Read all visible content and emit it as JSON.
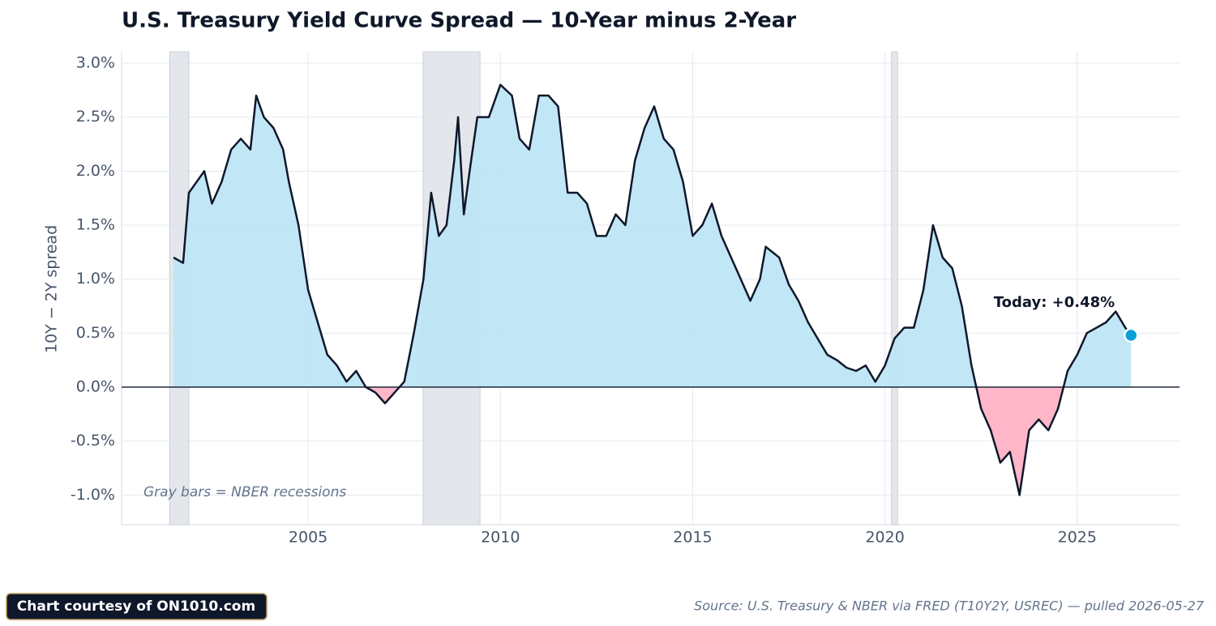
{
  "chart_data": {
    "type": "line",
    "title": "U.S. Treasury Yield Curve Spread — 10-Year minus 2-Year",
    "y_label": "10Y − 2Y spread",
    "xlim": [
      2000.15,
      2027.66
    ],
    "ylim": [
      -1.275,
      3.105
    ],
    "xticks": [
      2005,
      2010,
      2015,
      2020,
      2025
    ],
    "yticks": [
      {
        "value": -1,
        "label": "-1.0%"
      },
      {
        "value": -0.5,
        "label": "-0.5%"
      },
      {
        "value": 0,
        "label": "0.0%"
      },
      {
        "value": 0.5,
        "label": "0.5%"
      },
      {
        "value": 1,
        "label": "1.0%"
      },
      {
        "value": 1.5,
        "label": "1.5%"
      },
      {
        "value": 2,
        "label": "2.0%"
      },
      {
        "value": 2.5,
        "label": "2.5%"
      },
      {
        "value": 3,
        "label": "3.0%"
      }
    ],
    "grid": true,
    "positive_fill": "#bee5f4",
    "negative_fill": "#ffb6c8",
    "line_color": "#0f172a",
    "marker_color": "#0aa0d8",
    "recession_color": "#e2e6ec",
    "recessions": [
      [
        2001.4,
        2001.9
      ],
      [
        2007.99,
        2009.47
      ],
      [
        2020.17,
        2020.33
      ]
    ],
    "series": [
      {
        "name": "10Y − 2Y spread",
        "color": "#0f172a",
        "x": [
          2001.5,
          2001.75,
          2001.9,
          2002.1,
          2002.3,
          2002.5,
          2002.75,
          2003.0,
          2003.25,
          2003.5,
          2003.65,
          2003.85,
          2004.1,
          2004.35,
          2004.5,
          2004.75,
          2005.0,
          2005.25,
          2005.5,
          2005.75,
          2006.0,
          2006.25,
          2006.5,
          2006.75,
          2007.0,
          2007.25,
          2007.5,
          2007.75,
          2008.0,
          2008.2,
          2008.4,
          2008.6,
          2008.8,
          2008.9,
          2009.05,
          2009.2,
          2009.4,
          2009.7,
          2010.0,
          2010.3,
          2010.5,
          2010.75,
          2011.0,
          2011.25,
          2011.5,
          2011.75,
          2012.0,
          2012.25,
          2012.5,
          2012.75,
          2013.0,
          2013.25,
          2013.5,
          2013.75,
          2014.0,
          2014.25,
          2014.5,
          2014.75,
          2015.0,
          2015.25,
          2015.5,
          2015.75,
          2016.0,
          2016.25,
          2016.5,
          2016.75,
          2016.9,
          2017.25,
          2017.5,
          2017.75,
          2018.0,
          2018.25,
          2018.5,
          2018.75,
          2019.0,
          2019.25,
          2019.5,
          2019.75,
          2020.0,
          2020.25,
          2020.5,
          2020.75,
          2021.0,
          2021.25,
          2021.5,
          2021.75,
          2022.0,
          2022.25,
          2022.5,
          2022.75,
          2023.0,
          2023.25,
          2023.5,
          2023.75,
          2024.0,
          2024.25,
          2024.5,
          2024.75,
          2025.0,
          2025.25,
          2025.5,
          2025.75,
          2026.0,
          2026.25,
          2026.4
        ],
        "values": [
          1.2,
          1.15,
          1.8,
          1.9,
          2.0,
          1.7,
          1.9,
          2.2,
          2.3,
          2.2,
          2.7,
          2.5,
          2.4,
          2.2,
          1.9,
          1.5,
          0.9,
          0.6,
          0.3,
          0.2,
          0.05,
          0.15,
          0.0,
          -0.05,
          -0.15,
          -0.05,
          0.05,
          0.5,
          1.0,
          1.8,
          1.4,
          1.5,
          2.1,
          2.5,
          1.6,
          2.0,
          2.5,
          2.5,
          2.8,
          2.7,
          2.3,
          2.2,
          2.7,
          2.7,
          2.6,
          1.8,
          1.8,
          1.7,
          1.4,
          1.4,
          1.6,
          1.5,
          2.1,
          2.4,
          2.6,
          2.3,
          2.2,
          1.9,
          1.4,
          1.5,
          1.7,
          1.4,
          1.2,
          1.0,
          0.8,
          1.0,
          1.3,
          1.2,
          0.95,
          0.8,
          0.6,
          0.45,
          0.3,
          0.25,
          0.18,
          0.15,
          0.2,
          0.05,
          0.2,
          0.45,
          0.55,
          0.55,
          0.9,
          1.5,
          1.2,
          1.1,
          0.75,
          0.2,
          -0.2,
          -0.4,
          -0.7,
          -0.6,
          -1.0,
          -0.4,
          -0.3,
          -0.4,
          -0.2,
          0.15,
          0.3,
          0.5,
          0.55,
          0.6,
          0.7,
          0.55,
          0.48
        ]
      }
    ],
    "annotations": [
      "Today: +0.48%",
      "Gray bars = NBER recessions"
    ]
  },
  "footer": {
    "badge": "Chart courtesy of ON1010.com",
    "source": "Source: U.S. Treasury & NBER via FRED (T10Y2Y, USREC) — pulled 2026-05-27"
  }
}
